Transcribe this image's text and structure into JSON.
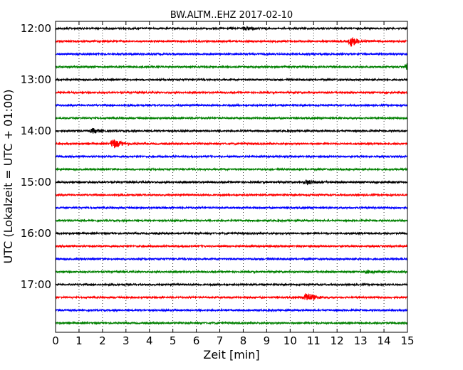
{
  "chart_data": {
    "type": "line",
    "title": "BW.ALTM..EHZ 2017-02-10",
    "xlabel": "Zeit  [min]",
    "ylabel": "UTC (Lokalzeit = UTC + 01:00)",
    "xlim": [
      0,
      15
    ],
    "x_ticks": [
      "0",
      "1",
      "2",
      "3",
      "4",
      "5",
      "6",
      "7",
      "8",
      "9",
      "10",
      "11",
      "12",
      "13",
      "14",
      "15"
    ],
    "y_ticks": [
      "12:00",
      "13:00",
      "14:00",
      "15:00",
      "16:00",
      "17:00"
    ],
    "grid": "vertical dotted lines at each minute",
    "trace_interval_min": 15,
    "colors": [
      "#000000",
      "#ff0000",
      "#0000ff",
      "#008000"
    ],
    "traces": [
      {
        "start": "12:00",
        "color": "#000000",
        "events": [
          {
            "t": 8.0,
            "amp": 0.35
          }
        ]
      },
      {
        "start": "12:15",
        "color": "#ff0000",
        "events": [
          {
            "t": 12.5,
            "amp": 1.0
          }
        ]
      },
      {
        "start": "12:30",
        "color": "#0000ff",
        "events": []
      },
      {
        "start": "12:45",
        "color": "#008000",
        "events": [
          {
            "t": 14.9,
            "amp": 0.7
          }
        ]
      },
      {
        "start": "13:00",
        "color": "#000000",
        "events": []
      },
      {
        "start": "13:15",
        "color": "#ff0000",
        "events": []
      },
      {
        "start": "13:30",
        "color": "#0000ff",
        "events": []
      },
      {
        "start": "13:45",
        "color": "#008000",
        "events": []
      },
      {
        "start": "14:00",
        "color": "#000000",
        "events": [
          {
            "t": 1.5,
            "amp": 0.45
          }
        ]
      },
      {
        "start": "14:15",
        "color": "#ff0000",
        "events": [
          {
            "t": 2.35,
            "amp": 1.0
          }
        ]
      },
      {
        "start": "14:30",
        "color": "#0000ff",
        "events": []
      },
      {
        "start": "14:45",
        "color": "#008000",
        "events": []
      },
      {
        "start": "15:00",
        "color": "#000000",
        "events": [
          {
            "t": 10.6,
            "amp": 0.5
          }
        ]
      },
      {
        "start": "15:15",
        "color": "#ff0000",
        "events": []
      },
      {
        "start": "15:30",
        "color": "#0000ff",
        "events": []
      },
      {
        "start": "15:45",
        "color": "#008000",
        "events": []
      },
      {
        "start": "16:00",
        "color": "#000000",
        "events": []
      },
      {
        "start": "16:15",
        "color": "#ff0000",
        "events": []
      },
      {
        "start": "16:30",
        "color": "#0000ff",
        "events": []
      },
      {
        "start": "16:45",
        "color": "#008000",
        "events": [
          {
            "t": 13.2,
            "amp": 0.3
          }
        ]
      },
      {
        "start": "17:00",
        "color": "#000000",
        "events": []
      },
      {
        "start": "17:15",
        "color": "#ff0000",
        "events": [
          {
            "t": 10.6,
            "amp": 1.0
          }
        ]
      },
      {
        "start": "17:30",
        "color": "#0000ff",
        "events": []
      },
      {
        "start": "17:45",
        "color": "#008000",
        "events": []
      }
    ]
  }
}
